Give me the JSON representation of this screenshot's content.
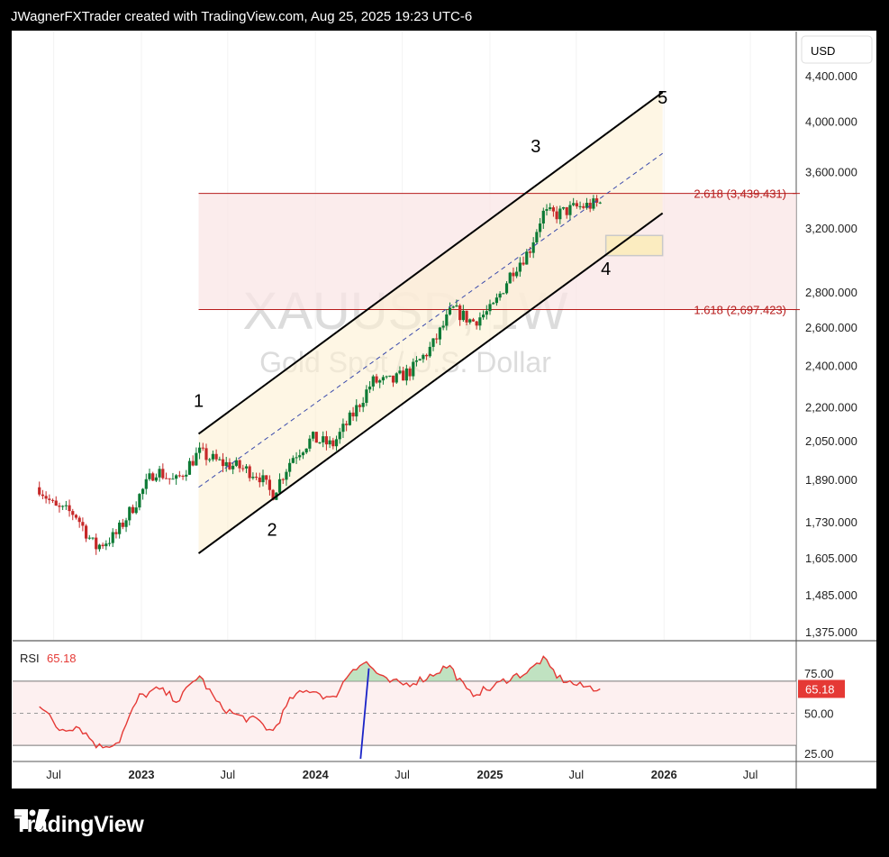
{
  "header": {
    "caption": "JWagnerFXTrader created with TradingView.com, Aug 25, 2025 19:23 UTC-6"
  },
  "footer": {
    "brand": "TradingView",
    "logo_icon": "tradingview-logo-icon"
  },
  "chart_data": {
    "type": "candlestick",
    "symbol_watermark": "XAUUSD, 1W",
    "description_watermark": "Gold Spot / U.S. Dollar",
    "currency": "USD",
    "y_scale": "log",
    "y_ticks": [
      "4,400.000",
      "4,000.000",
      "3,600.000",
      "3,200.000",
      "2,800.000",
      "2,600.000",
      "2,400.000",
      "2,200.000",
      "2,050.000",
      "1,890.000",
      "1,730.000",
      "1,605.000",
      "1,485.000",
      "1,375.000"
    ],
    "y_tick_values": [
      4400,
      4000,
      3600,
      3200,
      2800,
      2600,
      2400,
      2200,
      2050,
      1890,
      1730,
      1605,
      1485,
      1375
    ],
    "x_ticks": [
      "Jul",
      "2023",
      "Jul",
      "2024",
      "Jul",
      "2025",
      "Jul",
      "2026",
      "Jul"
    ],
    "x_tick_dates": [
      "2022-07-01",
      "2023-01-01",
      "2023-07-01",
      "2024-01-01",
      "2024-07-01",
      "2025-01-01",
      "2025-07-01",
      "2026-01-01",
      "2026-07-01"
    ],
    "fib_levels": [
      {
        "label": "2.618 (3,439.431)",
        "value": 3439.431
      },
      {
        "label": "1.618 (2,697.423)",
        "value": 2697.423
      }
    ],
    "wave_labels": [
      {
        "text": "1",
        "date": "2023-05-01",
        "price": 2200
      },
      {
        "text": "2",
        "date": "2023-10-02",
        "price": 1680
      },
      {
        "text": "3",
        "date": "2025-04-07",
        "price": 3750
      },
      {
        "text": "4",
        "date": "2025-09-01",
        "price": 2900
      },
      {
        "text": "5",
        "date": "2025-12-29",
        "price": 4150
      }
    ],
    "channel": {
      "upper": [
        {
          "date": "2023-05-01",
          "price": 2080
        },
        {
          "date": "2025-12-29",
          "price": 4250
        }
      ],
      "lower": [
        {
          "date": "2023-05-01",
          "price": 1620
        },
        {
          "date": "2025-12-29",
          "price": 3300
        }
      ],
      "mid": [
        {
          "date": "2023-05-01",
          "price": 1860
        },
        {
          "date": "2025-12-29",
          "price": 3740
        }
      ]
    },
    "target_zone": {
      "from_date": "2025-09-01",
      "to_date": "2025-12-29",
      "top": 3150,
      "bottom": 3020
    },
    "price_path": [
      {
        "date": "2022-06-01",
        "price": 1860
      },
      {
        "date": "2022-07-04",
        "price": 1780
      },
      {
        "date": "2022-08-15",
        "price": 1760
      },
      {
        "date": "2022-09-26",
        "price": 1640
      },
      {
        "date": "2022-11-07",
        "price": 1680
      },
      {
        "date": "2022-12-19",
        "price": 1800
      },
      {
        "date": "2023-01-30",
        "price": 1930
      },
      {
        "date": "2023-03-13",
        "price": 1880
      },
      {
        "date": "2023-05-01",
        "price": 2000
      },
      {
        "date": "2023-06-12",
        "price": 1960
      },
      {
        "date": "2023-07-24",
        "price": 1940
      },
      {
        "date": "2023-09-04",
        "price": 1910
      },
      {
        "date": "2023-10-02",
        "price": 1830
      },
      {
        "date": "2023-11-13",
        "price": 1980
      },
      {
        "date": "2023-12-25",
        "price": 2060
      },
      {
        "date": "2024-02-05",
        "price": 2030
      },
      {
        "date": "2024-03-18",
        "price": 2160
      },
      {
        "date": "2024-04-29",
        "price": 2320
      },
      {
        "date": "2024-06-10",
        "price": 2320
      },
      {
        "date": "2024-07-22",
        "price": 2380
      },
      {
        "date": "2024-09-02",
        "price": 2500
      },
      {
        "date": "2024-10-14",
        "price": 2700
      },
      {
        "date": "2024-11-25",
        "price": 2630
      },
      {
        "date": "2025-01-06",
        "price": 2700
      },
      {
        "date": "2025-02-17",
        "price": 2930
      },
      {
        "date": "2025-03-24",
        "price": 3050
      },
      {
        "date": "2025-04-21",
        "price": 3300
      },
      {
        "date": "2025-05-19",
        "price": 3290
      },
      {
        "date": "2025-06-30",
        "price": 3340
      },
      {
        "date": "2025-08-25",
        "price": 3370
      }
    ],
    "rsi": {
      "label": "RSI",
      "value_label": "65.18",
      "value": 65.18,
      "ticks": [
        "75.00",
        "50.00",
        "25.00"
      ],
      "tick_values": [
        75,
        50,
        25
      ],
      "overbought": 70,
      "oversold": 30,
      "middle": 50,
      "points": [
        {
          "date": "2022-06-01",
          "value": 56
        },
        {
          "date": "2022-07-11",
          "value": 40
        },
        {
          "date": "2022-08-22",
          "value": 42
        },
        {
          "date": "2022-10-03",
          "value": 29
        },
        {
          "date": "2022-11-14",
          "value": 32
        },
        {
          "date": "2022-12-26",
          "value": 60
        },
        {
          "date": "2023-02-06",
          "value": 65
        },
        {
          "date": "2023-03-20",
          "value": 58
        },
        {
          "date": "2023-05-01",
          "value": 74
        },
        {
          "date": "2023-06-12",
          "value": 55
        },
        {
          "date": "2023-07-24",
          "value": 48
        },
        {
          "date": "2023-09-04",
          "value": 45
        },
        {
          "date": "2023-10-02",
          "value": 38
        },
        {
          "date": "2023-11-13",
          "value": 60
        },
        {
          "date": "2023-12-25",
          "value": 65
        },
        {
          "date": "2024-02-05",
          "value": 58
        },
        {
          "date": "2024-03-18",
          "value": 78
        },
        {
          "date": "2024-04-15",
          "value": 82
        },
        {
          "date": "2024-05-27",
          "value": 70
        },
        {
          "date": "2024-07-08",
          "value": 68
        },
        {
          "date": "2024-08-19",
          "value": 72
        },
        {
          "date": "2024-10-07",
          "value": 80
        },
        {
          "date": "2024-11-18",
          "value": 62
        },
        {
          "date": "2024-12-30",
          "value": 65
        },
        {
          "date": "2025-02-10",
          "value": 72
        },
        {
          "date": "2025-03-24",
          "value": 76
        },
        {
          "date": "2025-04-21",
          "value": 84
        },
        {
          "date": "2025-05-26",
          "value": 72
        },
        {
          "date": "2025-07-07",
          "value": 67
        },
        {
          "date": "2025-08-25",
          "value": 65.18
        }
      ]
    }
  }
}
